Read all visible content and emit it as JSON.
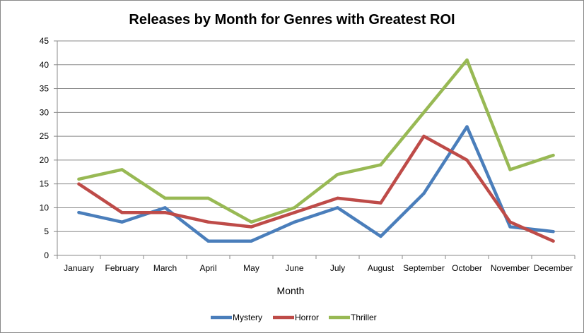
{
  "chart_data": {
    "type": "line",
    "title": "Releases by Month for Genres with Greatest ROI",
    "xlabel": "Month",
    "ylabel": "",
    "ylim": [
      0,
      45
    ],
    "yticks": [
      "0",
      "5",
      "10",
      "15",
      "20",
      "25",
      "30",
      "35",
      "40",
      "45"
    ],
    "grid": true,
    "legend_position": "bottom",
    "categories": [
      "January",
      "February",
      "March",
      "April",
      "May",
      "June",
      "July",
      "August",
      "September",
      "October",
      "November",
      "December"
    ],
    "series": [
      {
        "name": "Mystery",
        "color": "#4a7ebb",
        "values": [
          9,
          7,
          10,
          3,
          3,
          7,
          10,
          4,
          13,
          27,
          6,
          5
        ]
      },
      {
        "name": "Horror",
        "color": "#be4b48",
        "values": [
          15,
          9,
          9,
          7,
          6,
          9,
          12,
          11,
          25,
          20,
          7,
          3
        ]
      },
      {
        "name": "Thriller",
        "color": "#98b954",
        "values": [
          16,
          18,
          12,
          12,
          7,
          10,
          17,
          19,
          30,
          41,
          18,
          21
        ]
      }
    ]
  }
}
